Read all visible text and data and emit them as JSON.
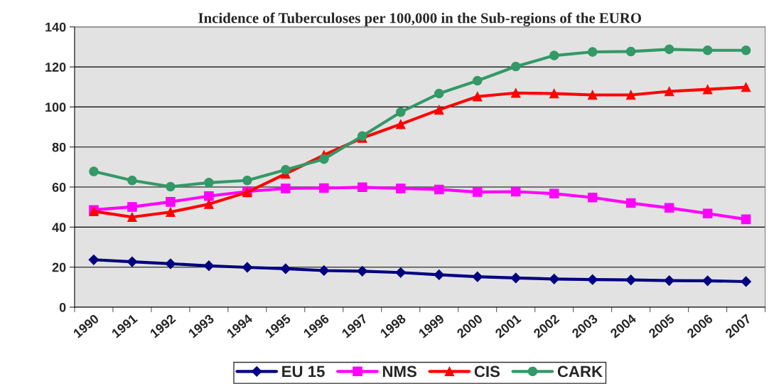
{
  "chart_data": {
    "type": "line",
    "title": "Incidence of Tuberculoses per 100,000 in the Sub-regions of the EURO",
    "categories": [
      "1990",
      "1991",
      "1992",
      "1993",
      "1994",
      "1995",
      "1996",
      "1997",
      "1998",
      "1999",
      "2000",
      "2001",
      "2002",
      "2003",
      "2004",
      "2005",
      "2006",
      "2007"
    ],
    "series": [
      {
        "name": "EU 15",
        "color": "#000080",
        "marker": "diamond",
        "values": [
          23.7,
          22.7,
          21.7,
          20.7,
          19.9,
          19.2,
          18.3,
          18.0,
          17.3,
          16.2,
          15.2,
          14.6,
          14.1,
          13.8,
          13.6,
          13.3,
          13.2,
          12.8
        ]
      },
      {
        "name": "NMS",
        "color": "#ff00ff",
        "marker": "square",
        "values": [
          48.6,
          50.1,
          52.6,
          55.5,
          57.8,
          59.3,
          59.5,
          59.9,
          59.3,
          58.8,
          57.5,
          57.7,
          56.7,
          54.8,
          52.0,
          49.6,
          46.8,
          43.9
        ]
      },
      {
        "name": "CIS",
        "color": "#ff0000",
        "marker": "triangle",
        "values": [
          47.9,
          45.0,
          47.5,
          51.5,
          57.4,
          66.6,
          76.0,
          84.5,
          91.4,
          98.6,
          105.2,
          107.0,
          106.7,
          106.0,
          106.0,
          107.8,
          108.8,
          109.9
        ]
      },
      {
        "name": "CARK",
        "color": "#339966",
        "marker": "circle",
        "values": [
          67.8,
          63.3,
          60.2,
          62.2,
          63.3,
          68.6,
          74.0,
          85.5,
          97.4,
          106.7,
          113.1,
          120.2,
          125.7,
          127.5,
          127.7,
          128.8,
          128.3,
          128.3
        ]
      }
    ],
    "ylim": [
      0,
      140
    ],
    "yticks": [
      0,
      20,
      40,
      60,
      80,
      100,
      120,
      140
    ],
    "grid": "y",
    "legend": "bottom"
  }
}
